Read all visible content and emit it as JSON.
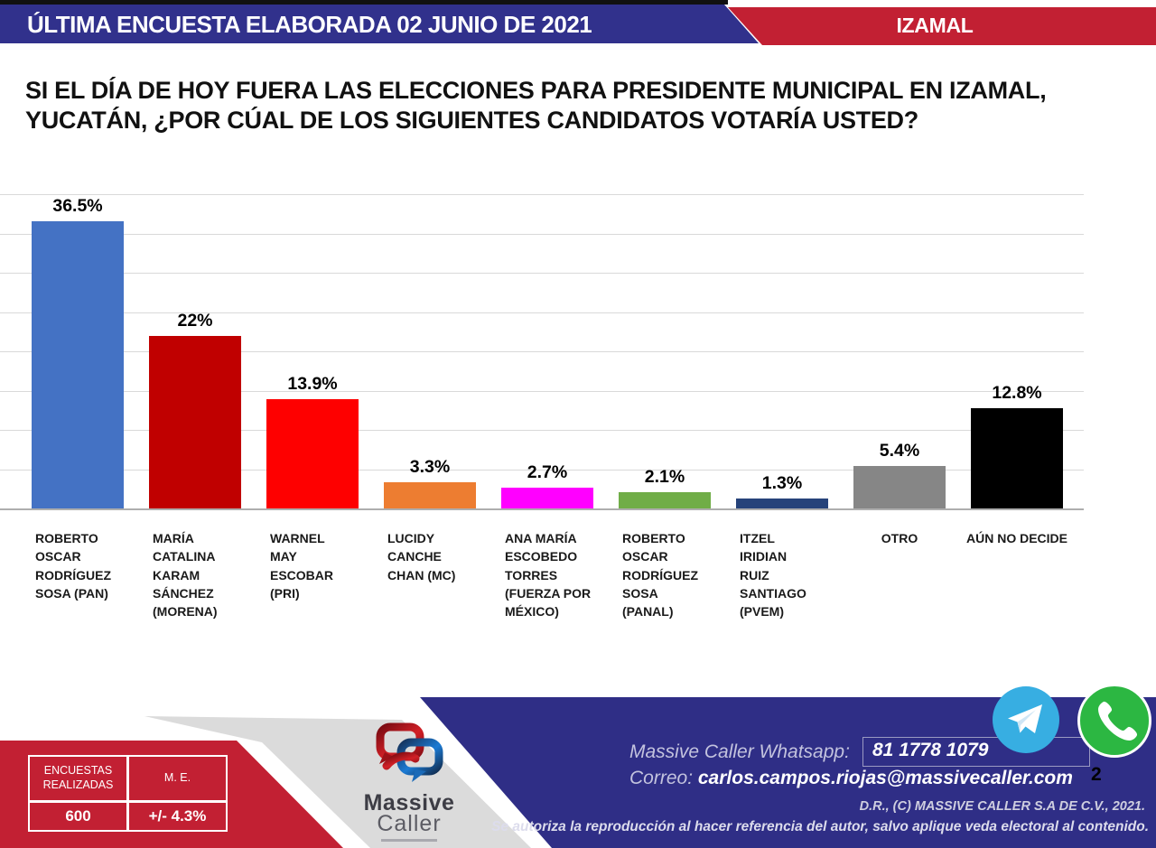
{
  "header": {
    "left_text": "ÚLTIMA ENCUESTA ELABORADA 02 JUNIO DE 2021",
    "right_text": "IZAMAL"
  },
  "question_lines": "SI EL DÍA DE HOY FUERA LAS ELECCIONES PARA PRESIDENTE MUNICIPAL EN IZAMAL,\nYUCATÁN, ¿POR CÚAL DE LOS SIGUIENTES CANDIDATOS VOTARÍA USTED?",
  "chart_data": {
    "type": "bar",
    "title": "",
    "xlabel": "",
    "ylabel": "",
    "ylim": [
      0,
      40
    ],
    "gridline_step": 5,
    "grid": true,
    "legend": false,
    "categories": [
      "ROBERTO OSCAR RODRÍGUEZ SOSA (PAN)",
      "MARÍA CATALINA KARAM SÁNCHEZ (MORENA)",
      "WARNEL MAY ESCOBAR (PRI)",
      "LUCIDY CANCHE CHAN (MC)",
      "ANA MARÍA ESCOBEDO TORRES (FUERZA POR MÉXICO)",
      "ROBERTO OSCAR RODRÍGUEZ SOSA (PANAL)",
      "ITZEL IRIDIAN RUIZ SANTIAGO (PVEM)",
      "OTRO",
      "AÚN NO DECIDE"
    ],
    "category_display_lines": [
      [
        "ROBERTO",
        "OSCAR",
        "RODRÍGUEZ",
        "SOSA (PAN)"
      ],
      [
        "MARÍA",
        "CATALINA",
        "KARAM",
        "SÁNCHEZ",
        "(MORENA)"
      ],
      [
        "WARNEL",
        "MAY",
        "ESCOBAR",
        "(PRI)"
      ],
      [
        "LUCIDY",
        "CANCHE",
        "CHAN (MC)"
      ],
      [
        "ANA MARÍA",
        "ESCOBEDO",
        "TORRES",
        "(FUERZA POR",
        "MÉXICO)"
      ],
      [
        "ROBERTO",
        "OSCAR",
        "RODRÍGUEZ",
        "SOSA",
        "(PANAL)"
      ],
      [
        "ITZEL",
        "IRIDIAN",
        "RUIZ",
        "SANTIAGO",
        "(PVEM)"
      ],
      [
        "OTRO"
      ],
      [
        "AÚN NO DECIDE"
      ]
    ],
    "values": [
      36.5,
      22,
      13.9,
      3.3,
      2.7,
      2.1,
      1.3,
      5.4,
      12.8
    ],
    "value_labels": [
      "36.5%",
      "22%",
      "13.9%",
      "3.3%",
      "2.7%",
      "2.1%",
      "1.3%",
      "5.4%",
      "12.8%"
    ],
    "bar_colors": [
      "#4472C4",
      "#C00000",
      "#FE0000",
      "#ED7D31",
      "#FF00FF",
      "#70AD47",
      "#26437A",
      "#868686",
      "#000000"
    ]
  },
  "footer": {
    "surveys_table": {
      "headers": [
        "ENCUESTAS REALIZADAS",
        "M. E."
      ],
      "values": [
        "600",
        "+/- 4.3%"
      ]
    },
    "logo": {
      "brand_top": "Massive",
      "brand_bottom": "Caller"
    },
    "whatsapp_label": "Massive Caller Whatsapp:",
    "whatsapp_number": "81 1778 1079",
    "email_label": "Correo:",
    "email_value": "carlos.campos.riojas@massivecaller.com",
    "slide_number": "2",
    "rights_line1": "D.R., (C) MASSIVE CALLER S.A DE C.V., 2021.",
    "rights_line2": "Se autoriza la reproducción al hacer referencia del autor, salvo aplique veda electoral al contenido."
  },
  "colors": {
    "header_blue": "#31318C",
    "band_red": "#C22033",
    "footer_blue": "#2F2E86",
    "ribbon_gray": "#DBDBDB",
    "telegram_blue": "#37AEE2",
    "whatsapp_green": "#2CB742"
  }
}
